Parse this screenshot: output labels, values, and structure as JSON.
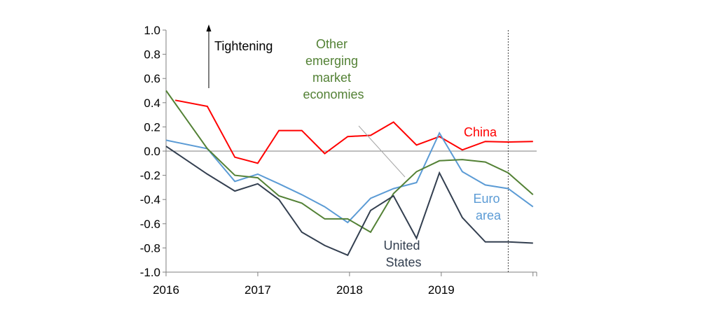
{
  "chart_data": {
    "type": "line",
    "title": "",
    "xlabel": "",
    "ylabel": "",
    "xlim": [
      2016,
      2020.04
    ],
    "ylim": [
      -1.0,
      1.0
    ],
    "x_ticks": [
      2016,
      2017,
      2018,
      2019
    ],
    "x_tick_labels": [
      "2016",
      "2017",
      "2018",
      "2019"
    ],
    "y_ticks": [
      1.0,
      0.8,
      0.6,
      0.4,
      0.2,
      0.0,
      -0.2,
      -0.4,
      -0.6,
      -0.8,
      -1.0
    ],
    "y_tick_labels": [
      "1.0",
      "0.8",
      "0.6",
      "0.4",
      "0.2",
      "0.0",
      "-0.2",
      "-0.4",
      "-0.6",
      "-0.8",
      "-1.0"
    ],
    "grid": false,
    "zero_line": true,
    "vertical_marker_x": 2019.73,
    "series": [
      {
        "name": "China",
        "color": "#ff0000",
        "x": [
          2016.1,
          2016.45,
          2016.75,
          2017.0,
          2017.23,
          2017.48,
          2017.73,
          2017.98,
          2018.23,
          2018.48,
          2018.73,
          2018.98,
          2019.23,
          2019.48,
          2019.73,
          2020.0
        ],
        "values": [
          0.42,
          0.37,
          -0.05,
          -0.1,
          0.17,
          0.17,
          -0.02,
          0.12,
          0.13,
          0.24,
          0.05,
          0.12,
          0.01,
          0.08,
          0.075,
          0.08
        ]
      },
      {
        "name": "Euro\narea",
        "color": "#5b9bd5",
        "x": [
          2016.0,
          2016.45,
          2016.75,
          2017.0,
          2017.23,
          2017.48,
          2017.73,
          2017.98,
          2018.23,
          2018.48,
          2018.73,
          2018.98,
          2019.23,
          2019.48,
          2019.73,
          2020.0
        ],
        "values": [
          0.09,
          0.02,
          -0.25,
          -0.19,
          -0.27,
          -0.36,
          -0.46,
          -0.59,
          -0.39,
          -0.31,
          -0.26,
          0.15,
          -0.17,
          -0.28,
          -0.31,
          -0.46
        ]
      },
      {
        "name": "Other\nemerging\nmarket\neconomies",
        "color": "#538135",
        "x": [
          2016.0,
          2016.45,
          2016.75,
          2017.0,
          2017.23,
          2017.48,
          2017.73,
          2017.98,
          2018.23,
          2018.48,
          2018.73,
          2018.98,
          2019.23,
          2019.48,
          2019.73,
          2020.0
        ],
        "values": [
          0.5,
          0.02,
          -0.2,
          -0.22,
          -0.37,
          -0.43,
          -0.56,
          -0.56,
          -0.67,
          -0.35,
          -0.17,
          -0.08,
          -0.07,
          -0.09,
          -0.18,
          -0.36
        ]
      },
      {
        "name": "United\nStates",
        "color": "#333f50",
        "x": [
          2016.0,
          2016.45,
          2016.75,
          2017.0,
          2017.23,
          2017.48,
          2017.73,
          2017.98,
          2018.23,
          2018.48,
          2018.73,
          2018.98,
          2019.23,
          2019.48,
          2019.73,
          2020.0
        ],
        "values": [
          0.04,
          -0.19,
          -0.33,
          -0.27,
          -0.4,
          -0.67,
          -0.78,
          -0.86,
          -0.49,
          -0.37,
          -0.72,
          -0.18,
          -0.55,
          -0.75,
          -0.75,
          -0.76
        ]
      }
    ],
    "annotations": [
      {
        "text": "Tightening"
      }
    ]
  }
}
